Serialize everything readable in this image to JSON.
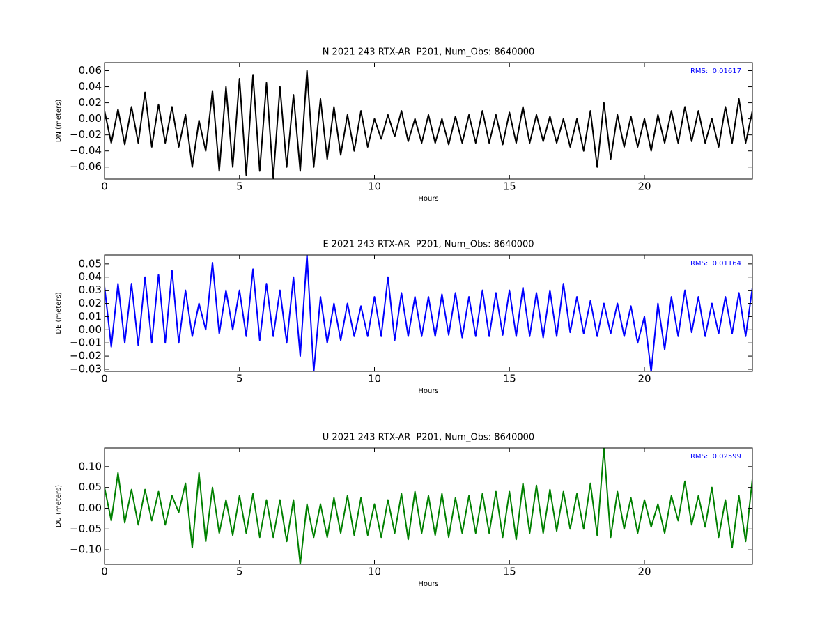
{
  "chart_data": [
    {
      "type": "line",
      "title": "N 2021 243 RTX-AR  P201, Num_Obs: 8640000",
      "xlabel": "Hours",
      "ylabel": "DN (meters)",
      "annotation": "RMS:  0.01617",
      "annotation_color": "#0000ff",
      "color": "#000000",
      "xlim": [
        0,
        24
      ],
      "xticks": [
        0,
        5,
        10,
        15,
        20
      ],
      "ylim": [
        -0.075,
        0.07
      ],
      "yticks": [
        {
          "value": 0.06,
          "label": "0.06"
        },
        {
          "value": 0.04,
          "label": "0.04"
        },
        {
          "value": 0.02,
          "label": "0.02"
        },
        {
          "value": 0,
          "label": "0.00"
        },
        {
          "value": -0.02,
          "label": "−0.02"
        },
        {
          "value": -0.04,
          "label": "−0.04"
        },
        {
          "value": -0.06,
          "label": "−0.06"
        }
      ],
      "x": [
        0,
        0.25,
        0.5,
        0.75,
        1,
        1.25,
        1.5,
        1.75,
        2,
        2.25,
        2.5,
        2.75,
        3,
        3.25,
        3.5,
        3.75,
        4,
        4.25,
        4.5,
        4.75,
        5,
        5.25,
        5.5,
        5.75,
        6,
        6.25,
        6.5,
        6.75,
        7,
        7.25,
        7.5,
        7.75,
        8,
        8.25,
        8.5,
        8.75,
        9,
        9.25,
        9.5,
        9.75,
        10,
        10.25,
        10.5,
        10.75,
        11,
        11.25,
        11.5,
        11.75,
        12,
        12.25,
        12.5,
        12.75,
        13,
        13.25,
        13.5,
        13.75,
        14,
        14.25,
        14.5,
        14.75,
        15,
        15.25,
        15.5,
        15.75,
        16,
        16.25,
        16.5,
        16.75,
        17,
        17.25,
        17.5,
        17.75,
        18,
        18.25,
        18.5,
        18.75,
        19,
        19.25,
        19.5,
        19.75,
        20,
        20.25,
        20.5,
        20.75,
        21,
        21.25,
        21.5,
        21.75,
        22,
        22.25,
        22.5,
        22.75,
        23,
        23.25,
        23.5,
        23.75,
        24
      ],
      "values": [
        0.01,
        -0.03,
        0.012,
        -0.032,
        0.015,
        -0.03,
        0.033,
        -0.035,
        0.018,
        -0.03,
        0.015,
        -0.035,
        0.005,
        -0.06,
        -0.002,
        -0.04,
        0.035,
        -0.065,
        0.04,
        -0.06,
        0.05,
        -0.07,
        0.055,
        -0.065,
        0.045,
        -0.074,
        0.04,
        -0.06,
        0.03,
        -0.065,
        0.06,
        -0.06,
        0.025,
        -0.05,
        0.015,
        -0.045,
        0.005,
        -0.04,
        0.01,
        -0.035,
        0.0,
        -0.025,
        0.005,
        -0.022,
        0.01,
        -0.028,
        0.0,
        -0.03,
        0.005,
        -0.03,
        0.0,
        -0.032,
        0.003,
        -0.03,
        0.005,
        -0.03,
        0.01,
        -0.03,
        0.005,
        -0.032,
        0.008,
        -0.03,
        0.015,
        -0.03,
        0.005,
        -0.028,
        0.003,
        -0.03,
        0.0,
        -0.035,
        0.0,
        -0.04,
        0.01,
        -0.06,
        0.02,
        -0.05,
        0.005,
        -0.035,
        0.003,
        -0.035,
        0.0,
        -0.04,
        0.005,
        -0.03,
        0.01,
        -0.03,
        0.015,
        -0.028,
        0.01,
        -0.03,
        0.0,
        -0.035,
        0.015,
        -0.03,
        0.025,
        -0.03,
        0.01
      ]
    },
    {
      "type": "line",
      "title": "E 2021 243 RTX-AR  P201, Num_Obs: 8640000",
      "xlabel": "Hours",
      "ylabel": "DE (meters)",
      "annotation": "RMS:  0.01164",
      "annotation_color": "#0000ff",
      "color": "#0000ff",
      "xlim": [
        0,
        24
      ],
      "xticks": [
        0,
        5,
        10,
        15,
        20
      ],
      "ylim": [
        -0.0316,
        0.0568
      ],
      "yticks": [
        {
          "value": 0.05,
          "label": "0.05"
        },
        {
          "value": 0.04,
          "label": "0.04"
        },
        {
          "value": 0.03,
          "label": "0.03"
        },
        {
          "value": 0.02,
          "label": "0.02"
        },
        {
          "value": 0.01,
          "label": "0.01"
        },
        {
          "value": 0,
          "label": "0.00"
        },
        {
          "value": -0.01,
          "label": "−0.01"
        },
        {
          "value": -0.02,
          "label": "−0.02"
        },
        {
          "value": -0.03,
          "label": "−0.03"
        }
      ],
      "x": [
        0,
        0.25,
        0.5,
        0.75,
        1,
        1.25,
        1.5,
        1.75,
        2,
        2.25,
        2.5,
        2.75,
        3,
        3.25,
        3.5,
        3.75,
        4,
        4.25,
        4.5,
        4.75,
        5,
        5.25,
        5.5,
        5.75,
        6,
        6.25,
        6.5,
        6.75,
        7,
        7.25,
        7.5,
        7.75,
        8,
        8.25,
        8.5,
        8.75,
        9,
        9.25,
        9.5,
        9.75,
        10,
        10.25,
        10.5,
        10.75,
        11,
        11.25,
        11.5,
        11.75,
        12,
        12.25,
        12.5,
        12.75,
        13,
        13.25,
        13.5,
        13.75,
        14,
        14.25,
        14.5,
        14.75,
        15,
        15.25,
        15.5,
        15.75,
        16,
        16.25,
        16.5,
        16.75,
        17,
        17.25,
        17.5,
        17.75,
        18,
        18.25,
        18.5,
        18.75,
        19,
        19.25,
        19.5,
        19.75,
        20,
        20.25,
        20.5,
        20.75,
        21,
        21.25,
        21.5,
        21.75,
        22,
        22.25,
        22.5,
        22.75,
        23,
        23.25,
        23.5,
        23.75,
        24
      ],
      "values": [
        0.033,
        -0.013,
        0.035,
        -0.01,
        0.035,
        -0.012,
        0.04,
        -0.01,
        0.042,
        -0.01,
        0.045,
        -0.01,
        0.03,
        -0.005,
        0.02,
        0.0,
        0.051,
        -0.003,
        0.03,
        0.0,
        0.03,
        -0.005,
        0.046,
        -0.008,
        0.035,
        -0.005,
        0.03,
        -0.01,
        0.04,
        -0.02,
        0.057,
        -0.032,
        0.025,
        -0.01,
        0.02,
        -0.008,
        0.02,
        -0.005,
        0.018,
        -0.005,
        0.025,
        -0.005,
        0.04,
        -0.008,
        0.028,
        -0.005,
        0.025,
        -0.005,
        0.025,
        -0.005,
        0.027,
        -0.004,
        0.028,
        -0.006,
        0.025,
        -0.005,
        0.03,
        -0.005,
        0.028,
        -0.004,
        0.03,
        -0.005,
        0.032,
        -0.005,
        0.028,
        -0.006,
        0.03,
        -0.005,
        0.035,
        -0.002,
        0.025,
        -0.003,
        0.022,
        -0.005,
        0.02,
        -0.003,
        0.02,
        -0.005,
        0.018,
        -0.01,
        0.01,
        -0.032,
        0.02,
        -0.015,
        0.025,
        -0.005,
        0.03,
        -0.002,
        0.025,
        -0.005,
        0.02,
        -0.003,
        0.025,
        -0.003,
        0.028,
        -0.005,
        0.032
      ]
    },
    {
      "type": "line",
      "title": "U 2021 243 RTX-AR  P201, Num_Obs: 8640000",
      "xlabel": "Hours",
      "ylabel": "DU (meters)",
      "annotation": "RMS:  0.02599",
      "annotation_color": "#0000ff",
      "color": "#008000",
      "xlim": [
        0,
        24
      ],
      "xticks": [
        0,
        5,
        10,
        15,
        20
      ],
      "ylim": [
        -0.135,
        0.145
      ],
      "yticks": [
        {
          "value": 0.1,
          "label": "0.10"
        },
        {
          "value": 0.05,
          "label": "0.05"
        },
        {
          "value": 0,
          "label": "0.00"
        },
        {
          "value": -0.05,
          "label": "−0.05"
        },
        {
          "value": -0.1,
          "label": "−0.10"
        }
      ],
      "x": [
        0,
        0.25,
        0.5,
        0.75,
        1,
        1.25,
        1.5,
        1.75,
        2,
        2.25,
        2.5,
        2.75,
        3,
        3.25,
        3.5,
        3.75,
        4,
        4.25,
        4.5,
        4.75,
        5,
        5.25,
        5.5,
        5.75,
        6,
        6.25,
        6.5,
        6.75,
        7,
        7.25,
        7.5,
        7.75,
        8,
        8.25,
        8.5,
        8.75,
        9,
        9.25,
        9.5,
        9.75,
        10,
        10.25,
        10.5,
        10.75,
        11,
        11.25,
        11.5,
        11.75,
        12,
        12.25,
        12.5,
        12.75,
        13,
        13.25,
        13.5,
        13.75,
        14,
        14.25,
        14.5,
        14.75,
        15,
        15.25,
        15.5,
        15.75,
        16,
        16.25,
        16.5,
        16.75,
        17,
        17.25,
        17.5,
        17.75,
        18,
        18.25,
        18.5,
        18.75,
        19,
        19.25,
        19.5,
        19.75,
        20,
        20.25,
        20.5,
        20.75,
        21,
        21.25,
        21.5,
        21.75,
        22,
        22.25,
        22.5,
        22.75,
        23,
        23.25,
        23.5,
        23.75,
        24
      ],
      "values": [
        0.05,
        -0.03,
        0.085,
        -0.035,
        0.045,
        -0.04,
        0.045,
        -0.03,
        0.04,
        -0.04,
        0.03,
        -0.01,
        0.06,
        -0.095,
        0.085,
        -0.08,
        0.05,
        -0.06,
        0.02,
        -0.065,
        0.03,
        -0.06,
        0.035,
        -0.07,
        0.02,
        -0.07,
        0.02,
        -0.08,
        0.02,
        -0.135,
        0.01,
        -0.07,
        0.01,
        -0.07,
        0.025,
        -0.06,
        0.03,
        -0.065,
        0.025,
        -0.065,
        0.01,
        -0.07,
        0.02,
        -0.06,
        0.035,
        -0.075,
        0.04,
        -0.06,
        0.03,
        -0.065,
        0.035,
        -0.07,
        0.025,
        -0.06,
        0.03,
        -0.06,
        0.035,
        -0.06,
        0.04,
        -0.07,
        0.04,
        -0.075,
        0.06,
        -0.06,
        0.055,
        -0.06,
        0.045,
        -0.055,
        0.04,
        -0.05,
        0.035,
        -0.05,
        0.06,
        -0.065,
        0.145,
        -0.07,
        0.04,
        -0.05,
        0.025,
        -0.06,
        0.02,
        -0.045,
        0.01,
        -0.06,
        0.03,
        -0.03,
        0.065,
        -0.04,
        0.03,
        -0.045,
        0.05,
        -0.07,
        0.02,
        -0.095,
        0.03,
        -0.08,
        0.07
      ]
    }
  ]
}
